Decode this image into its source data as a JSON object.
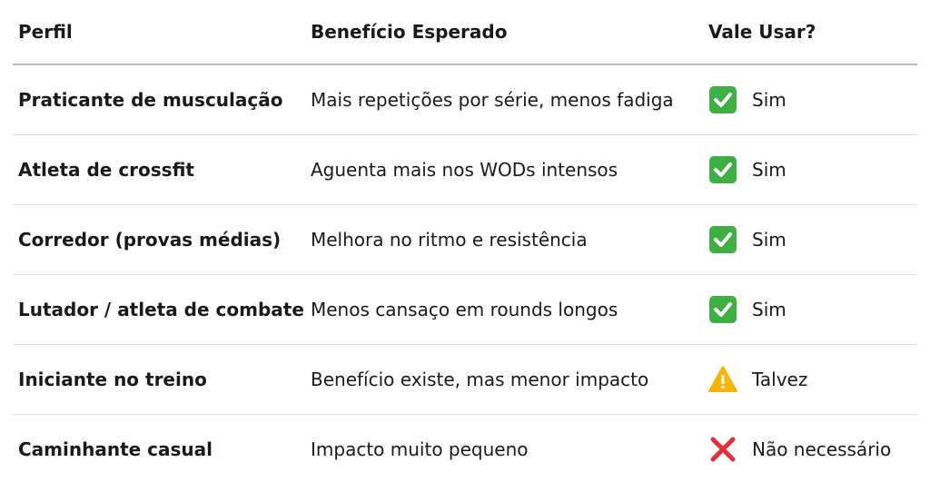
{
  "table": {
    "header": [
      "Perfil",
      "Benefício Esperado",
      "Vale Usar?"
    ],
    "rows": [
      [
        "Praticante de musculação",
        "Mais repetições por série, menos fadiga",
        "Sim"
      ],
      [
        "Atleta de crossfit",
        "Aguenta mais nos WODs intensos",
        "Sim"
      ],
      [
        "Corredor (provas médias)",
        "Melhora no ritmo e resistência",
        "Sim"
      ],
      [
        "Lutador / atleta de combate",
        "Menos cansaço em rounds longos",
        "Sim"
      ],
      [
        "Iniciante no treino",
        "Benefício existe, mas menor impacto",
        "Talvez"
      ],
      [
        "Caminhante casual",
        "Impacto muito pequeno",
        "Não necessário"
      ]
    ]
  }
}
